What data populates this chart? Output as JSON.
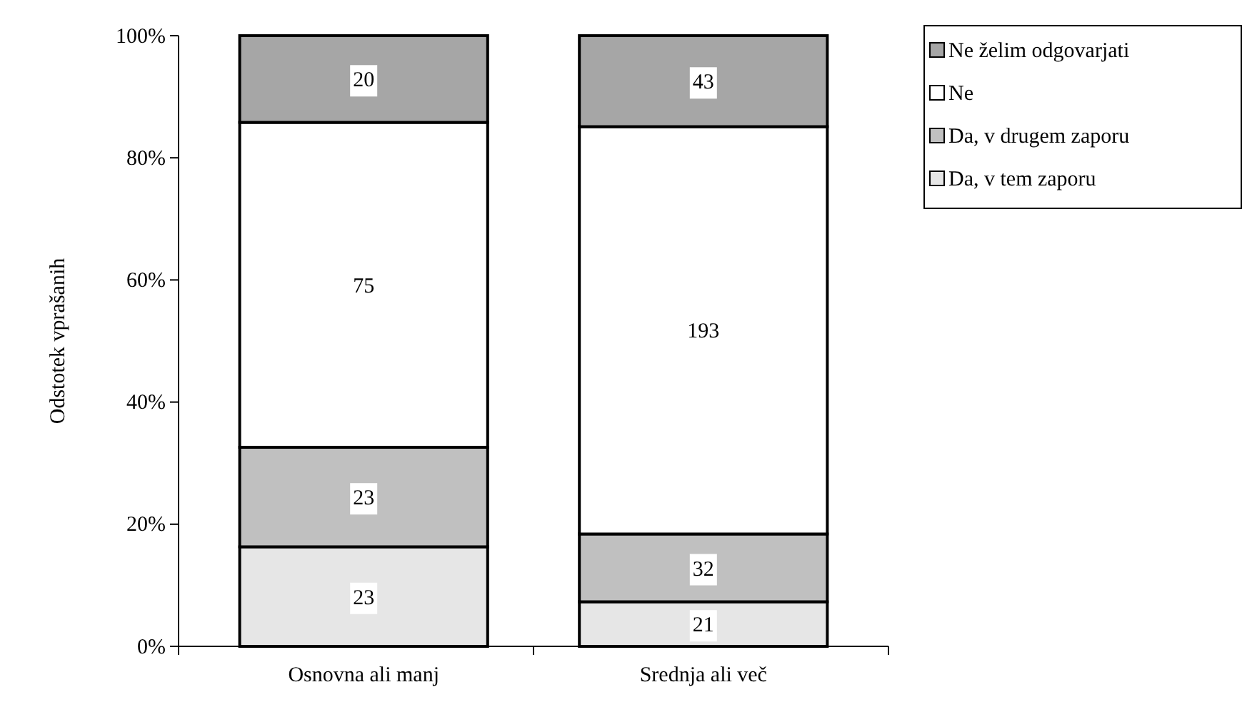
{
  "chart_data": {
    "type": "bar",
    "stacked": true,
    "categories": [
      "Osnovna ali manj",
      "Srednja ali več"
    ],
    "ylabel": "Odstotek vprašanih",
    "ylim": [
      0,
      100
    ],
    "yticks": [
      {
        "value": 0,
        "label": "0%"
      },
      {
        "value": 20,
        "label": "20%"
      },
      {
        "value": 40,
        "label": "40%"
      },
      {
        "value": 60,
        "label": "60%"
      },
      {
        "value": 80,
        "label": "80%"
      },
      {
        "value": 100,
        "label": "100%"
      }
    ],
    "legend": "top right",
    "grid": false,
    "series": [
      {
        "name": "Da, v tem zaporu",
        "color": "#e6e6e6",
        "values": [
          16.3,
          7.3
        ]
      },
      {
        "name": "Da, v drugem zaporu",
        "color": "#c0c0c0",
        "values": [
          16.3,
          11.1
        ]
      },
      {
        "name": "Ne",
        "color": "#ffffff",
        "values": [
          53.2,
          66.7
        ]
      },
      {
        "name": "Ne želim odgovarjati",
        "color": "#a6a6a6",
        "values": [
          14.2,
          14.9
        ]
      }
    ],
    "annotations": [
      {
        "text": "23",
        "x": "Osnovna ali manj",
        "y": 8.15
      },
      {
        "text": "23",
        "x": "Osnovna ali manj",
        "y": 24.45
      },
      {
        "text": "75",
        "x": "Osnovna ali manj",
        "y": 59.2
      },
      {
        "text": "20",
        "x": "Osnovna ali manj",
        "y": 92.9
      },
      {
        "text": "21",
        "x": "Srednja ali več",
        "y": 3.65
      },
      {
        "text": "32",
        "x": "Srednja ali več",
        "y": 12.85
      },
      {
        "text": "193",
        "x": "Srednja ali več",
        "y": 51.8
      },
      {
        "text": "43",
        "x": "Srednja ali več",
        "y": 92.55
      }
    ]
  }
}
